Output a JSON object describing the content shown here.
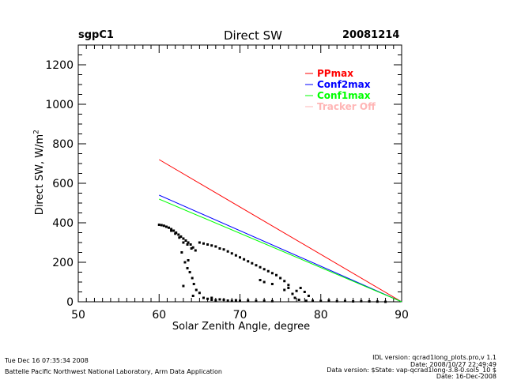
{
  "header": {
    "site": "sgpC1",
    "title": "Direct SW",
    "date": "20081214"
  },
  "footer": {
    "timestamp": "Tue Dec 16 07:35:34 2008",
    "organization": "Battelle Pacific Northwest National Laboratory, Arm Data Application",
    "idl_version": "IDL version: qcrad1long_plots.pro,v 1.1",
    "idl_date": "Date: 2008/10/27 22:49:49",
    "data_version": "Data version: $State: vap-qcrad1long-3.8-0.sol5_10 $",
    "data_date": "Date: 16-Dec-2008"
  },
  "chart_data": {
    "type": "scatter",
    "title": "Direct SW",
    "xlabel": "Solar Zenith Angle, degree",
    "ylabel": "Direct SW, W/m²",
    "xlim": [
      50,
      90
    ],
    "ylim": [
      0,
      1300
    ],
    "xticks": [
      50,
      60,
      70,
      80,
      90
    ],
    "xtick_labels": [
      "50",
      "60",
      "70",
      "80",
      "90"
    ],
    "yticks": [
      0,
      200,
      400,
      600,
      800,
      1000,
      1200
    ],
    "ytick_labels": [
      "0",
      "200",
      "400",
      "600",
      "800",
      "1000",
      "1200"
    ],
    "grid": false,
    "legend_position": "top-right",
    "legend": [
      {
        "name": "PPmax",
        "color": "#ff0000"
      },
      {
        "name": "Conf2max",
        "color": "#0000ff"
      },
      {
        "name": "Conf1max",
        "color": "#00ff00"
      },
      {
        "name": "Tracker Off",
        "color": "#ffb6b6"
      }
    ],
    "series": [
      {
        "name": "PPmax",
        "kind": "line",
        "color": "#ff0000",
        "x": [
          60,
          90
        ],
        "y": [
          720,
          0
        ]
      },
      {
        "name": "Conf2max",
        "kind": "line",
        "color": "#0000ff",
        "x": [
          60,
          90
        ],
        "y": [
          540,
          0
        ]
      },
      {
        "name": "Conf1max",
        "kind": "line",
        "color": "#00ff00",
        "x": [
          60,
          90
        ],
        "y": [
          520,
          0
        ]
      },
      {
        "name": "Direct SW",
        "kind": "scatter",
        "color": "#000000",
        "x": [
          60.0,
          60.3,
          60.6,
          60.9,
          61.2,
          61.5,
          61.8,
          62.1,
          62.4,
          62.7,
          63.0,
          63.3,
          63.6,
          63.9,
          64.2,
          64.5,
          61.5,
          62.0,
          62.5,
          63.0,
          63.5,
          64.0,
          65.0,
          65.5,
          66.0,
          66.5,
          67.0,
          67.5,
          68.0,
          68.5,
          69.0,
          69.5,
          70.0,
          70.5,
          71.0,
          71.5,
          72.0,
          72.5,
          73.0,
          73.5,
          74.0,
          74.5,
          75.0,
          75.5,
          76.0,
          72.5,
          73.0,
          74.0,
          75.5,
          76.0,
          62.8,
          63.2,
          63.5,
          63.8,
          64.1,
          64.3,
          63.0,
          64.6,
          65.0,
          64.2,
          63.6,
          66.5,
          65.5,
          66.0,
          66.5,
          67.0,
          67.5,
          68.0,
          68.5,
          69.0,
          69.5,
          70.0,
          71.0,
          72.0,
          73.0,
          74.0,
          76.5,
          77.0,
          77.5,
          78.0,
          78.5,
          76.8,
          77.3,
          78.2,
          79.0,
          80.0,
          81.0,
          82.0,
          83.0,
          84.0,
          85.0,
          86.0,
          87.0,
          88.0
        ],
        "y": [
          390,
          388,
          385,
          380,
          375,
          368,
          360,
          350,
          340,
          330,
          320,
          310,
          300,
          290,
          275,
          260,
          360,
          345,
          325,
          300,
          290,
          270,
          300,
          295,
          290,
          285,
          280,
          270,
          265,
          255,
          245,
          235,
          225,
          215,
          205,
          195,
          185,
          175,
          165,
          155,
          145,
          135,
          120,
          105,
          85,
          110,
          100,
          90,
          60,
          70,
          250,
          200,
          170,
          150,
          120,
          90,
          80,
          60,
          45,
          30,
          210,
          20,
          20,
          15,
          10,
          8,
          12,
          10,
          6,
          5,
          8,
          5,
          6,
          4,
          5,
          3,
          40,
          55,
          70,
          50,
          30,
          20,
          10,
          5,
          5,
          4,
          6,
          3,
          4,
          2,
          3,
          2,
          1,
          0
        ]
      }
    ]
  }
}
